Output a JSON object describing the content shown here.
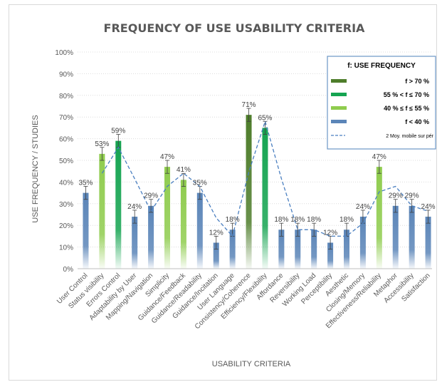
{
  "colors": {
    "f_gt_70": "#4e7d2b",
    "f_55_70": "#15a451",
    "f_40_55": "#8fcc4e",
    "f_lt_40": "#5b85b8",
    "moving_avg": "#4a7fc0"
  },
  "chart_data": {
    "type": "bar",
    "title": "FREQUENCY OF USE USABILITY CRITERIA",
    "xlabel": "USABILITY CRITERIA",
    "ylabel": "USE FREQUENCY / STUDIES",
    "ylim": [
      0,
      100
    ],
    "yticks": [
      "0%",
      "10%",
      "20%",
      "30%",
      "40%",
      "50%",
      "60%",
      "70%",
      "80%",
      "90%",
      "100%"
    ],
    "grid": true,
    "legend_position": "top-right",
    "categories": [
      "User Control",
      "Status visibility",
      "Errors Control",
      "Adaptability by User",
      "Mapping/Navigation",
      "Simplicity",
      "Guidance/Feedback",
      "Guidance/Readability",
      "Guidance/Incitation",
      "User Language",
      "Consistency/Coherence",
      "Efficiency/Flexibility",
      "Affordance",
      "Reversibility",
      "Working Load",
      "Perceptibility",
      "Aesthetic",
      "Closing/Memory",
      "Effectiveness/Reliability",
      "Metaphor",
      "Accessibility",
      "Satisfaction"
    ],
    "values": [
      35,
      53,
      59,
      24,
      29,
      47,
      41,
      35,
      12,
      18,
      71,
      65,
      18,
      18,
      18,
      12,
      18,
      24,
      47,
      29,
      29,
      24
    ],
    "data_labels": [
      "35%",
      "53%",
      "59%",
      "24%",
      "29%",
      "47%",
      "41%",
      "35%",
      "12%",
      "18%",
      "71%",
      "65%",
      "18%",
      "18%",
      "18%",
      "12%",
      "18%",
      "24%",
      "47%",
      "29%",
      "29%",
      "24%"
    ],
    "groups": [
      "f_lt_40",
      "f_40_55",
      "f_55_70",
      "f_lt_40",
      "f_lt_40",
      "f_40_55",
      "f_40_55",
      "f_lt_40",
      "f_lt_40",
      "f_lt_40",
      "f_gt_70",
      "f_55_70",
      "f_lt_40",
      "f_lt_40",
      "f_lt_40",
      "f_lt_40",
      "f_lt_40",
      "f_lt_40",
      "f_40_55",
      "f_lt_40",
      "f_lt_40",
      "f_lt_40"
    ],
    "moving_average": [
      null,
      44,
      56,
      41.5,
      26.5,
      38,
      44,
      38,
      23.5,
      15,
      44.5,
      68,
      41.5,
      18,
      18,
      15,
      15,
      21,
      35.5,
      38,
      29,
      26.5
    ],
    "legend": {
      "title": "f: USE FREQUENCY",
      "entries": [
        {
          "key": "f_gt_70",
          "label": "f > 70 %"
        },
        {
          "key": "f_55_70",
          "label": "55 % < f ≤ 70 %"
        },
        {
          "key": "f_40_55",
          "label": "40 % ≤ f ≤ 55 %"
        },
        {
          "key": "f_lt_40",
          "label": "f < 40 %"
        },
        {
          "key": "moving_avg",
          "label": "2 Moy. mobile sur pér"
        }
      ]
    }
  }
}
